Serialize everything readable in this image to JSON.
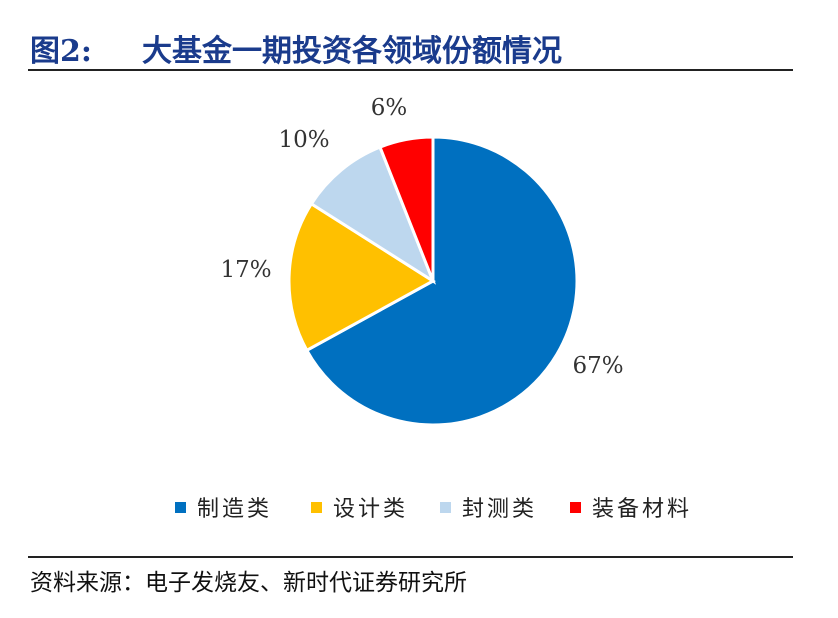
{
  "figure": {
    "label": "图2:",
    "title": "大基金一期投资各领域份额情况"
  },
  "source": "资料来源：电子发烧友、新时代证券研究所",
  "colors": {
    "title": "#1a3b8c",
    "制造类": "#0070c0",
    "设计类": "#ffc000",
    "封测类": "#bdd7ee",
    "装备材料": "#ff0000"
  },
  "chart_data": {
    "type": "pie",
    "title": "",
    "legend_position": "bottom",
    "start_angle_deg": 0,
    "direction": "clockwise",
    "slices": [
      {
        "name": "制造类",
        "value": 67,
        "label": "67%"
      },
      {
        "name": "设计类",
        "value": 17,
        "label": "17%"
      },
      {
        "name": "封测类",
        "value": 10,
        "label": "10%"
      },
      {
        "name": "装备材料",
        "value": 6,
        "label": "6%"
      }
    ]
  }
}
